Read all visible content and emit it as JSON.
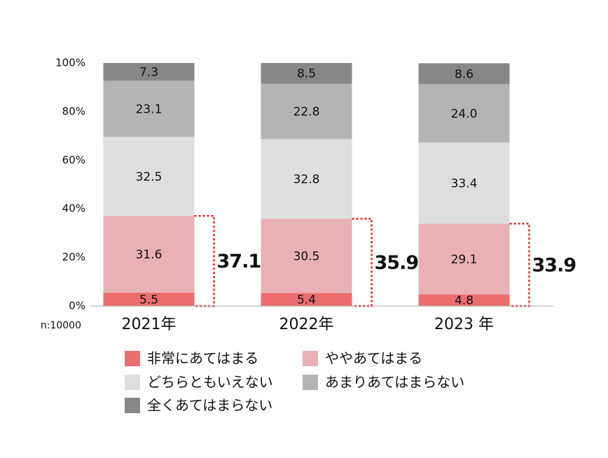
{
  "chart_data": {
    "type": "stacked_bar",
    "categories": [
      "2021年",
      "2022年",
      "2023 年"
    ],
    "series": [
      {
        "name": "非常にあてはまる",
        "color": "#ec6e6e",
        "values": [
          5.5,
          5.4,
          4.8
        ]
      },
      {
        "name": "ややあてはまる",
        "color": "#e9b0b6",
        "values": [
          31.6,
          30.5,
          29.1
        ]
      },
      {
        "name": "どちらともいえない",
        "color": "#dedede",
        "values": [
          32.5,
          32.8,
          33.4
        ]
      },
      {
        "name": "あまりあてはまらない",
        "color": "#b4b4b4",
        "values": [
          23.1,
          22.8,
          24.0
        ],
        "value_labels": [
          "23.1",
          "22.8",
          "24.0"
        ]
      },
      {
        "name": "全くあてはまらない",
        "color": "#878787",
        "values": [
          7.3,
          8.5,
          8.6
        ]
      }
    ],
    "bracket_totals": [
      37.1,
      35.9,
      33.9
    ],
    "bracket_color": "#e0202a",
    "sample_note": "n:10000",
    "ylim": [
      0,
      100
    ],
    "yticks": [
      {
        "value": 0,
        "label": "0%"
      },
      {
        "value": 20,
        "label": "20%"
      },
      {
        "value": 40,
        "label": "40%"
      },
      {
        "value": 60,
        "label": "60%"
      },
      {
        "value": 80,
        "label": "80%"
      },
      {
        "value": 100,
        "label": "100%"
      }
    ],
    "grid": false
  }
}
